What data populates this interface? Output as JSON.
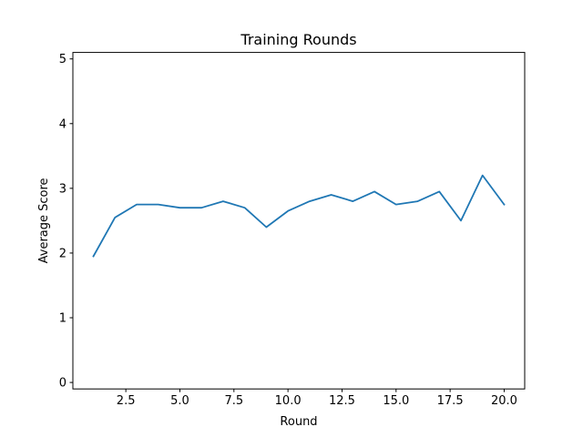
{
  "chart_data": {
    "type": "line",
    "title": "Training Rounds",
    "xlabel": "Round",
    "ylabel": "Average Score",
    "xlim": [
      0.05,
      20.95
    ],
    "ylim": [
      -0.1,
      5.1
    ],
    "xticks": [
      2.5,
      5.0,
      7.5,
      10.0,
      12.5,
      15.0,
      17.5,
      20.0
    ],
    "xtick_labels": [
      "2.5",
      "5.0",
      "7.5",
      "10.0",
      "12.5",
      "15.0",
      "17.5",
      "20.0"
    ],
    "yticks": [
      0,
      1,
      2,
      3,
      4,
      5
    ],
    "ytick_labels": [
      "0",
      "1",
      "2",
      "3",
      "4",
      "5"
    ],
    "grid": false,
    "series": [
      {
        "name": "Average Score",
        "color": "#1f77b4",
        "x": [
          1,
          2,
          3,
          4,
          5,
          6,
          7,
          8,
          9,
          10,
          11,
          12,
          13,
          14,
          15,
          16,
          17,
          18,
          19,
          20
        ],
        "y": [
          1.95,
          2.55,
          2.75,
          2.75,
          2.7,
          2.7,
          2.8,
          2.7,
          2.4,
          2.65,
          2.8,
          2.9,
          2.8,
          2.95,
          2.75,
          2.8,
          2.95,
          2.5,
          3.2,
          2.75
        ]
      }
    ]
  }
}
